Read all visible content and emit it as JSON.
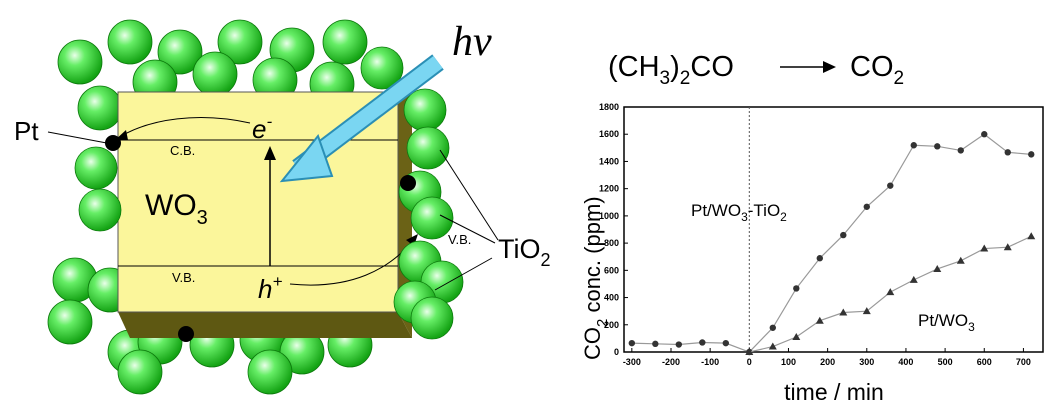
{
  "diagram": {
    "photon": "hν",
    "pt": "Pt",
    "electron": [
      "e",
      "-"
    ],
    "cb": "C.B.",
    "wo3": [
      "WO",
      "3"
    ],
    "vb_left": "V.B.",
    "vb_right": "V.B.",
    "hole": [
      "h",
      "+"
    ],
    "tio2": [
      "TiO",
      "2"
    ]
  },
  "chart_data": {
    "type": "line",
    "title": [
      "(CH",
      "3",
      ")",
      "2",
      "CO",
      "CO",
      "2"
    ],
    "y_label": [
      "CO",
      "2",
      " conc. (ppm)"
    ],
    "x_label": "time / min",
    "x": [
      -300,
      -240,
      -180,
      -120,
      -60,
      0,
      60,
      120,
      180,
      240,
      300,
      360,
      420,
      480,
      540,
      600,
      660,
      720
    ],
    "series": [
      {
        "name": [
          "Pt/WO",
          "3",
          "-TiO",
          "2"
        ],
        "color": "#333333",
        "marker": "circle",
        "values": [
          65,
          60,
          55,
          70,
          65,
          0,
          178,
          467,
          689,
          859,
          1067,
          1222,
          1519,
          1511,
          1481,
          1600,
          1467,
          1452
        ]
      },
      {
        "name": [
          "Pt/WO",
          "3"
        ],
        "color": "#333333",
        "marker": "triangle",
        "values": [
          null,
          null,
          null,
          null,
          null,
          0,
          40,
          110,
          230,
          290,
          300,
          440,
          530,
          610,
          670,
          760,
          770,
          850
        ]
      }
    ],
    "xlim": [
      -320,
      750
    ],
    "ylim": [
      0,
      1800
    ],
    "xticks": [
      -300,
      -200,
      -100,
      0,
      100,
      200,
      300,
      400,
      500,
      600,
      700
    ],
    "yticks": [
      0,
      200,
      400,
      600,
      800,
      1000,
      1200,
      1400,
      1600,
      1800
    ],
    "vline_x": 0
  }
}
